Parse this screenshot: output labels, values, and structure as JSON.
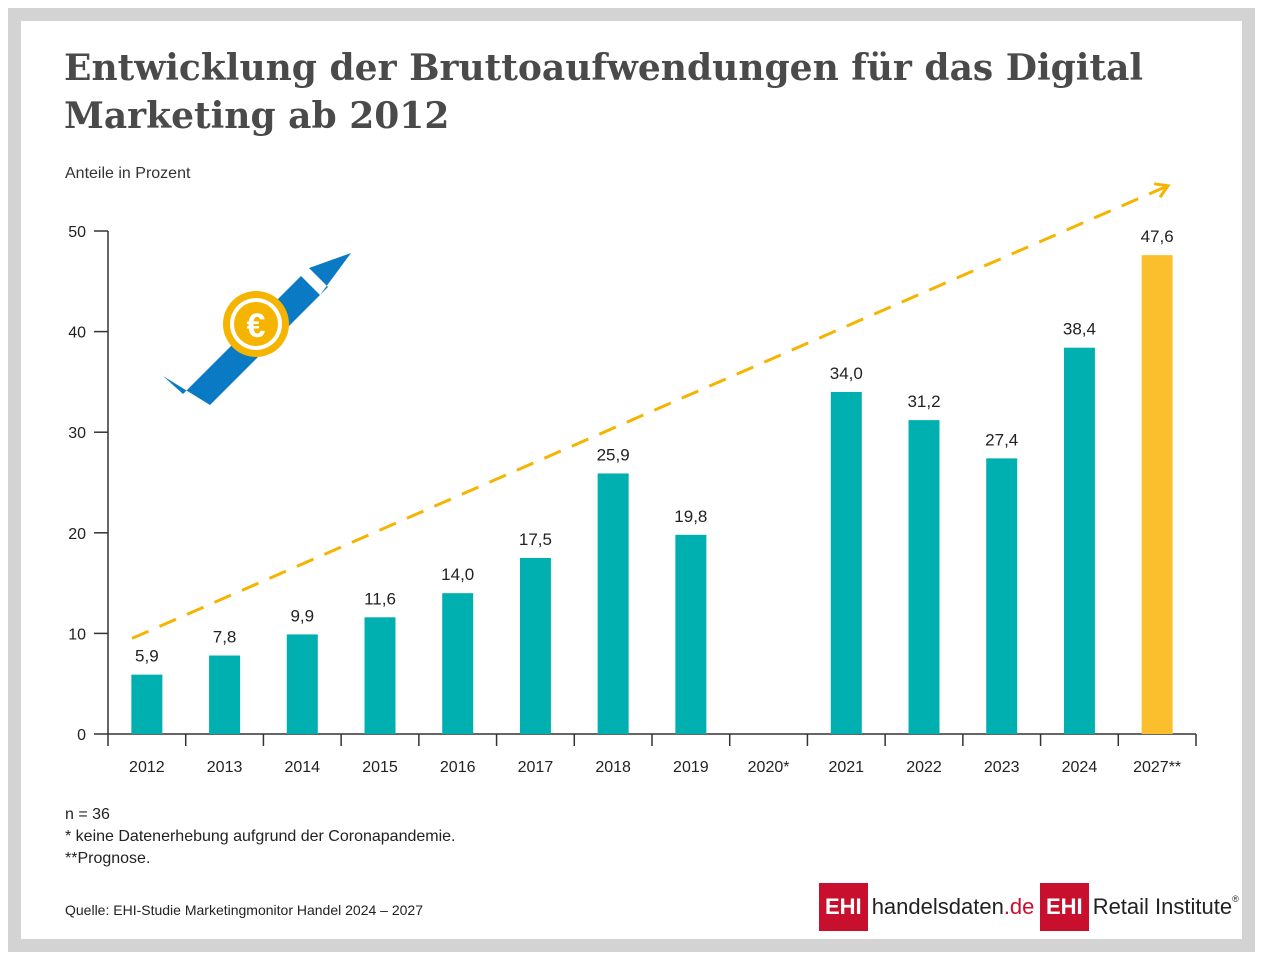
{
  "title": "Entwicklung der Bruttoaufwendungen für das Digital Marketing ab 2012",
  "subtitle": "Anteile in Prozent",
  "notes": [
    "n = 36",
    "* keine Datenerhebung aufgrund der Coronapandemie.",
    "**Prognose."
  ],
  "source": "Quelle: EHI-Studie Marketingmonitor Handel 2024 – 2027",
  "logos": {
    "handelsdaten_box": "EHI",
    "handelsdaten_text": "handelsdaten",
    "handelsdaten_tld": ".de",
    "retail_box": "EHI",
    "retail_text": "Retail Institute",
    "retail_reg": "®"
  },
  "colors": {
    "bar": "#00b0b0",
    "forecast_bar": "#fbbf2d",
    "trend": "#f5b400",
    "arrow": "#0a7ac4",
    "coin": "#f5b400"
  },
  "icons": [
    "euro-coin-icon",
    "rising-arrow-icon"
  ],
  "chart_data": {
    "type": "bar",
    "categories": [
      "2012",
      "2013",
      "2014",
      "2015",
      "2016",
      "2017",
      "2018",
      "2019",
      "2020*",
      "2021",
      "2022",
      "2023",
      "2024",
      "2027**"
    ],
    "values": [
      5.9,
      7.8,
      9.9,
      11.6,
      14.0,
      17.5,
      25.9,
      19.8,
      null,
      34.0,
      31.2,
      27.4,
      38.4,
      47.6
    ],
    "value_labels": [
      "5,9",
      "7,8",
      "9,9",
      "11,6",
      "14,0",
      "17,5",
      "25,9",
      "19,8",
      "",
      "34,0",
      "31,2",
      "27,4",
      "38,4",
      "47,6"
    ],
    "forecast_index": 13,
    "ylabel": "Anteile in Prozent",
    "ylim": [
      0,
      50
    ],
    "yticks": [
      0,
      10,
      20,
      30,
      40,
      50
    ],
    "grid": false,
    "trend_line": "dashed"
  }
}
